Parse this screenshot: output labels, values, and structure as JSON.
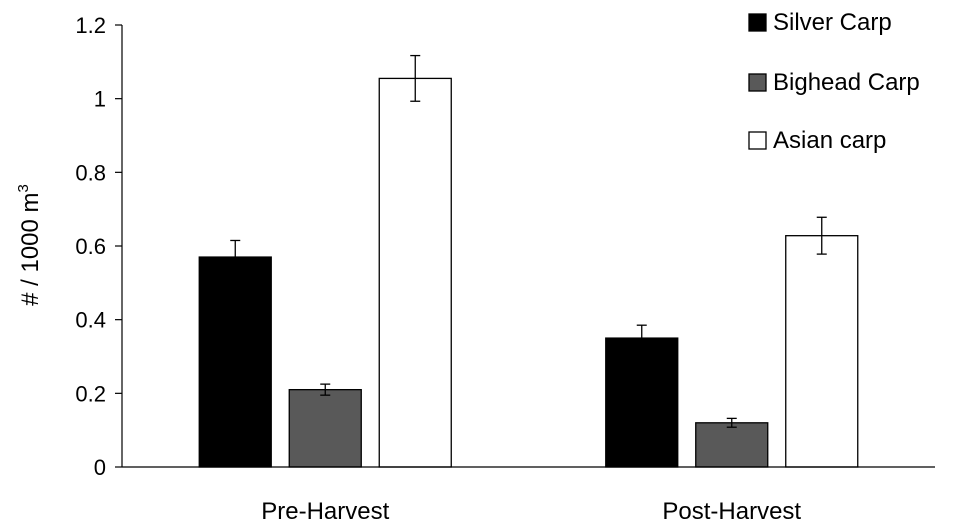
{
  "chart_data": {
    "type": "bar",
    "categories": [
      "Pre-Harvest",
      "Post-Harvest"
    ],
    "ylabel": "# / 1000 m",
    "ylabel_sup": "3",
    "ylim": [
      0,
      1.2
    ],
    "yticks": [
      0,
      0.2,
      0.4,
      0.6,
      0.8,
      1,
      1.2
    ],
    "ytick_labels": [
      "0",
      "0.2",
      "0.4",
      "0.6",
      "0.8",
      "1",
      "1.2"
    ],
    "grid": false,
    "legend_position": "top-right",
    "series": [
      {
        "name": "Silver Carp",
        "color": "#000000",
        "values": [
          0.57,
          0.35
        ],
        "errors": [
          0.045,
          0.035
        ]
      },
      {
        "name": "Bighead Carp",
        "color": "#595959",
        "values": [
          0.21,
          0.12
        ],
        "errors": [
          0.015,
          0.012
        ]
      },
      {
        "name": "Asian carp",
        "color": "#ffffff",
        "values": [
          1.055,
          0.628
        ],
        "errors": [
          0.062,
          0.05
        ]
      }
    ]
  }
}
